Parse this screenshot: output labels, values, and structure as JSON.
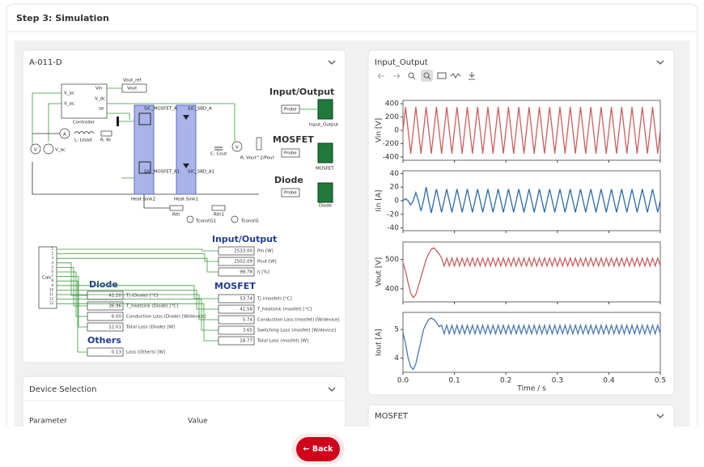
{
  "header": {
    "title": "Step 3: Simulation"
  },
  "circuit_panel": {
    "title": "A-011-D",
    "labels": [
      "Vout_ref",
      "Vout",
      "Vin",
      "V_ac",
      "V_dc",
      "se",
      "V_ac",
      "Controller",
      "L: Lload",
      "R: Rl",
      "A",
      "V",
      "V_ac",
      "SiC_MOSFET_A",
      "SiC_SBD_A",
      "SiC_MOSFET_A1",
      "SiC_SBD_A1",
      "Heat Sink2",
      "Heat Sink1",
      "C: Cout",
      "V",
      "R: Vout^2/Pout",
      "Rth",
      "Rth1",
      "TconstG1",
      "TconstG",
      "Input/Output",
      "Probe",
      "Input_Output",
      "MOSFET",
      "Probe",
      "MOSFET",
      "Diode",
      "Probe",
      "Diode",
      "Calc"
    ],
    "calc_ports": [
      1,
      2,
      3,
      4,
      5,
      6,
      7,
      8,
      9,
      10,
      11,
      12,
      13
    ],
    "displays": [
      {
        "title": "Input/Output",
        "rows": [
          {
            "value": "2533.00",
            "label": "Pin [W]"
          },
          {
            "value": "2502.09",
            "label": "Pout [W]"
          },
          {
            "value": "98.78",
            "label": "η [%]"
          }
        ]
      },
      {
        "title": "Diode",
        "rows": [
          {
            "value": "42.20",
            "label": "Tj (Diode) [°C]"
          },
          {
            "value": "36.96",
            "label": "T_heatsink (Diode) [°C]"
          },
          {
            "value": "6.00",
            "label": "Conduction Loss (Diode) [W/device]"
          },
          {
            "value": "12.01",
            "label": "Total Loss (Diode) [W]"
          }
        ]
      },
      {
        "title": "Others",
        "rows": [
          {
            "value": "0.13",
            "label": "Loss (Others) [W]"
          }
        ]
      },
      {
        "title": "MOSFET",
        "rows": [
          {
            "value": "53.74",
            "label": "Tj (mosfet) [°C]"
          },
          {
            "value": "41.58",
            "label": "T_heatsink (mosfet) [°C]"
          },
          {
            "value": "5.74",
            "label": "Conduction Loss (mosfet) [W/device]"
          },
          {
            "value": "3.65",
            "label": "Switching Loss (mosfet) [W/device]"
          },
          {
            "value": "18.77",
            "label": "Total Loss (mosfet) [W]"
          }
        ]
      }
    ]
  },
  "device_selection": {
    "title": "Device Selection",
    "columns": [
      "Parameter",
      "Value"
    ]
  },
  "plot_panel": {
    "title": "Input_Output"
  },
  "mosfet_panel": {
    "title": "MOSFET"
  },
  "back_button": "← Back",
  "chart_data": {
    "type": "line",
    "xlabel": "Time / s",
    "xlim": [
      0,
      0.5
    ],
    "xticks": [
      {
        "value": 0,
        "label": "0.0"
      },
      0.1,
      0.2,
      0.3,
      0.4,
      0.5
    ],
    "x": [
      0,
      0.005,
      0.01,
      0.015,
      0.02,
      0.025,
      0.03,
      0.035,
      0.04,
      0.045,
      0.05,
      0.055,
      0.06,
      0.065,
      0.07,
      0.075,
      0.08,
      0.085,
      0.09,
      0.095,
      0.1,
      0.105,
      0.11,
      0.115,
      0.12,
      0.125,
      0.13,
      0.135,
      0.14,
      0.145,
      0.15,
      0.155,
      0.16,
      0.165,
      0.17,
      0.175,
      0.18,
      0.185,
      0.19,
      0.195,
      0.2,
      0.205,
      0.21,
      0.215,
      0.22,
      0.225,
      0.23,
      0.235,
      0.24,
      0.245,
      0.25,
      0.255,
      0.26,
      0.265,
      0.27,
      0.275,
      0.28,
      0.285,
      0.29,
      0.295,
      0.3,
      0.305,
      0.31,
      0.315,
      0.32,
      0.325,
      0.33,
      0.335,
      0.34,
      0.345,
      0.35,
      0.355,
      0.36,
      0.365,
      0.37,
      0.375,
      0.38,
      0.385,
      0.39,
      0.395,
      0.4,
      0.405,
      0.41,
      0.415,
      0.42,
      0.425,
      0.43,
      0.435,
      0.44,
      0.445,
      0.45,
      0.455,
      0.46,
      0.465,
      0.47,
      0.475,
      0.48,
      0.485,
      0.49,
      0.495,
      0.5
    ],
    "panels": [
      {
        "ylabel": "Vin [V]",
        "color": "#c9605e",
        "ylim": [
          -450,
          450
        ],
        "yticks": [
          400,
          200,
          0,
          -200,
          -400
        ],
        "values": [
          0,
          350,
          0,
          -350,
          0,
          350,
          0,
          -350,
          0,
          350,
          0,
          -350,
          0,
          350,
          0,
          -350,
          0,
          350,
          0,
          -350,
          0,
          350,
          0,
          -350,
          0,
          350,
          0,
          -350,
          0,
          350,
          0,
          -350,
          0,
          350,
          0,
          -350,
          0,
          350,
          0,
          -350,
          0,
          350,
          0,
          -350,
          0,
          350,
          0,
          -350,
          0,
          350,
          0,
          -350,
          0,
          350,
          0,
          -350,
          0,
          350,
          0,
          -350,
          0,
          350,
          0,
          -350,
          0,
          350,
          0,
          -350,
          0,
          350,
          0,
          -350,
          0,
          350,
          0,
          -350,
          0,
          350,
          0,
          -350,
          0,
          350,
          0,
          -350,
          0,
          350,
          0,
          -350,
          0,
          350,
          0,
          -350,
          0,
          350,
          0,
          -350,
          0,
          350,
          0,
          -350,
          0
        ]
      },
      {
        "ylabel": "Iin [A]",
        "color": "#2f6aa6",
        "ylim": [
          -44,
          44
        ],
        "yticks": [
          40,
          20,
          0,
          -20,
          -40
        ],
        "values": [
          0,
          3,
          0,
          -6,
          0,
          12,
          0,
          -15,
          0,
          20,
          0,
          -18,
          0,
          17,
          0,
          -17,
          0,
          17,
          0,
          -17,
          0,
          17,
          0,
          -17,
          0,
          17,
          0,
          -17,
          0,
          17,
          0,
          -17,
          0,
          17,
          0,
          -17,
          0,
          17,
          0,
          -17,
          0,
          17,
          0,
          -17,
          0,
          17,
          0,
          -17,
          0,
          17,
          0,
          -17,
          0,
          17,
          0,
          -17,
          0,
          17,
          0,
          -17,
          0,
          17,
          0,
          -17,
          0,
          17,
          0,
          -17,
          0,
          17,
          0,
          -17,
          0,
          17,
          0,
          -17,
          0,
          17,
          0,
          -17,
          0,
          17,
          0,
          -17,
          0,
          17,
          0,
          -17,
          0,
          17,
          0,
          -17,
          0,
          17,
          0,
          -17,
          0,
          17,
          0,
          -17,
          0
        ]
      },
      {
        "ylabel": "Vout [V]",
        "color": "#c9605e",
        "ylim": [
          355,
          560
        ],
        "yticks": [
          400,
          500
        ],
        "values": [
          490,
          460,
          420,
          385,
          370,
          380,
          410,
          440,
          470,
          500,
          520,
          535,
          540,
          530,
          520,
          505,
          478,
          505,
          478,
          505,
          478,
          505,
          478,
          505,
          478,
          505,
          478,
          505,
          478,
          505,
          478,
          505,
          478,
          505,
          478,
          505,
          478,
          505,
          478,
          505,
          478,
          505,
          478,
          505,
          478,
          505,
          478,
          505,
          478,
          505,
          478,
          505,
          478,
          505,
          478,
          505,
          478,
          505,
          478,
          505,
          478,
          505,
          478,
          505,
          478,
          505,
          478,
          505,
          478,
          505,
          478,
          505,
          478,
          505,
          478,
          505,
          478,
          505,
          478,
          505,
          478,
          505,
          478,
          505,
          478,
          505,
          478,
          505,
          478,
          505,
          478,
          505,
          478,
          505,
          478,
          505,
          478,
          505,
          478,
          505,
          478
        ]
      },
      {
        "ylabel": "Iout [A]",
        "color": "#4a78b0",
        "ylim": [
          3.5,
          5.6
        ],
        "yticks": [
          4,
          5
        ],
        "values": [
          4.9,
          4.5,
          4.0,
          3.7,
          3.6,
          3.8,
          4.2,
          4.6,
          5.0,
          5.2,
          5.35,
          5.4,
          5.35,
          5.25,
          5.1,
          5.15,
          4.85,
          5.15,
          4.85,
          5.15,
          4.85,
          5.15,
          4.85,
          5.15,
          4.85,
          5.15,
          4.85,
          5.15,
          4.85,
          5.15,
          4.85,
          5.15,
          4.85,
          5.15,
          4.85,
          5.15,
          4.85,
          5.15,
          4.85,
          5.15,
          4.85,
          5.15,
          4.85,
          5.15,
          4.85,
          5.15,
          4.85,
          5.15,
          4.85,
          5.15,
          4.85,
          5.15,
          4.85,
          5.15,
          4.85,
          5.15,
          4.85,
          5.15,
          4.85,
          5.15,
          4.85,
          5.15,
          4.85,
          5.15,
          4.85,
          5.15,
          4.85,
          5.15,
          4.85,
          5.15,
          4.85,
          5.15,
          4.85,
          5.15,
          4.85,
          5.15,
          4.85,
          5.15,
          4.85,
          5.15,
          4.85,
          5.15,
          4.85,
          5.15,
          4.85,
          5.15,
          4.85,
          5.15,
          4.85,
          5.15,
          4.85,
          5.15,
          4.85,
          5.15,
          4.85,
          5.15,
          4.85,
          5.15,
          4.85,
          5.15,
          4.85
        ]
      }
    ]
  }
}
